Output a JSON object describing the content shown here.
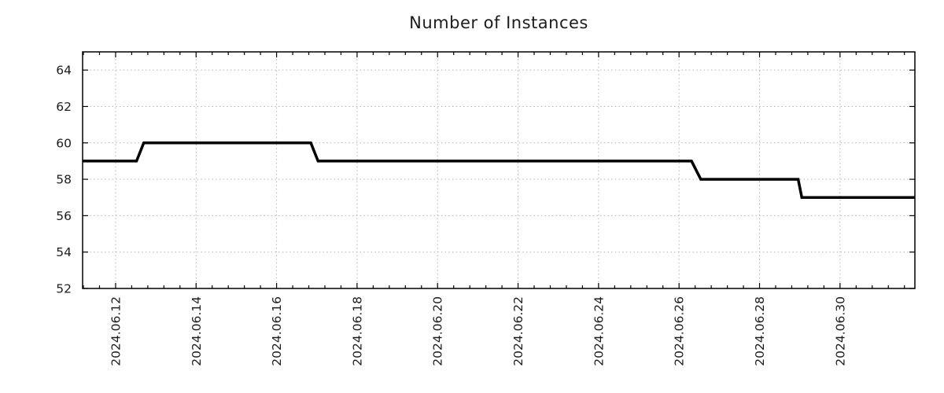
{
  "chart_data": {
    "type": "line",
    "subtype": "step-time-series",
    "title": "Number of Instances",
    "background_color": "#ffffff",
    "line_color": "#000000",
    "line_width": 3.5,
    "grid_color": "#b3b3b3",
    "axis_color": "#000000",
    "tick_color": "#000000",
    "tick_label_color": "#1c1c1c",
    "title_color": "#1c1c1c",
    "grid_on": true,
    "legend": "none",
    "x_axis": {
      "unit": "days offset from 2024.06.12",
      "range": [
        -0.82,
        19.86
      ],
      "major_step_days": 2,
      "minor_step_days": 0.4,
      "ticks": [
        {
          "d": 0,
          "label": "2024.06.12"
        },
        {
          "d": 2,
          "label": "2024.06.14"
        },
        {
          "d": 4,
          "label": "2024.06.16"
        },
        {
          "d": 6,
          "label": "2024.06.18"
        },
        {
          "d": 8,
          "label": "2024.06.20"
        },
        {
          "d": 10,
          "label": "2024.06.22"
        },
        {
          "d": 12,
          "label": "2024.06.24"
        },
        {
          "d": 14,
          "label": "2024.06.26"
        },
        {
          "d": 16,
          "label": "2024.06.28"
        },
        {
          "d": 18,
          "label": "2024.06.30"
        }
      ]
    },
    "y_axis": {
      "range": [
        52,
        65
      ],
      "ticks": [
        52,
        54,
        56,
        58,
        60,
        62,
        64
      ]
    },
    "series": [
      {
        "name": "instances",
        "points": [
          {
            "d": -0.82,
            "v": 59
          },
          {
            "d": 0.52,
            "v": 59
          },
          {
            "d": 0.7,
            "v": 60
          },
          {
            "d": 4.85,
            "v": 60
          },
          {
            "d": 5.03,
            "v": 59
          },
          {
            "d": 14.31,
            "v": 59
          },
          {
            "d": 14.54,
            "v": 58
          },
          {
            "d": 16.96,
            "v": 58
          },
          {
            "d": 17.05,
            "v": 57
          },
          {
            "d": 19.86,
            "v": 57
          }
        ]
      }
    ],
    "value_summary": {
      "start_value": 59,
      "steps": [
        {
          "date": "2024.06.12",
          "to": 60
        },
        {
          "date": "2024.06.17",
          "to": 59
        },
        {
          "date": "2024.06.26",
          "to": 58
        },
        {
          "date": "2024.06.29",
          "to": 57
        }
      ],
      "end_value": 57
    }
  }
}
